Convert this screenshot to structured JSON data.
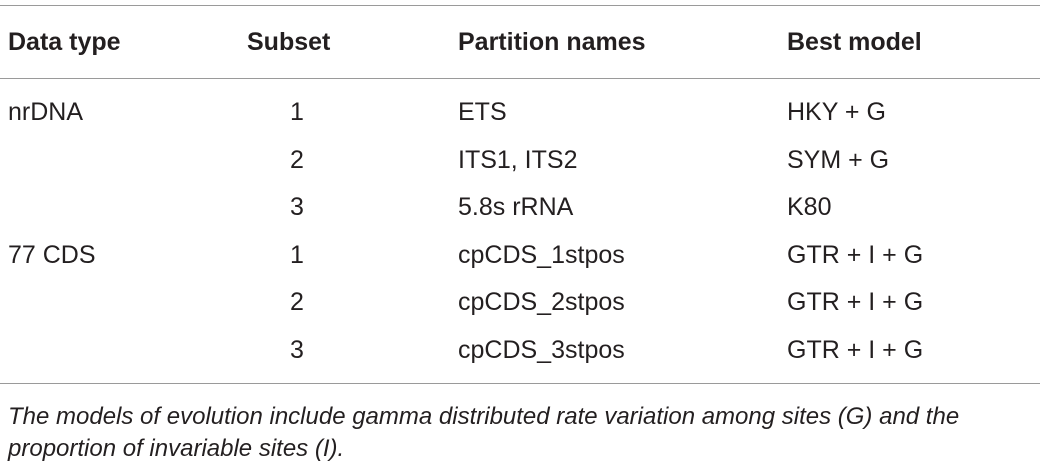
{
  "table": {
    "header": [
      "Data type",
      "Subset",
      "Partition names",
      "Best model"
    ],
    "groups": [
      {
        "data_type": "nrDNA",
        "rows": [
          [
            1,
            "ETS",
            "HKY + G"
          ],
          [
            2,
            "ITS1, ITS2",
            "SYM + G"
          ],
          [
            3,
            "5.8s rRNA",
            "K80"
          ]
        ]
      },
      {
        "data_type": "77 CDS",
        "rows": [
          [
            1,
            "cpCDS_1stpos",
            "GTR + I + G"
          ],
          [
            2,
            "cpCDS_2stpos",
            "GTR + I + G"
          ],
          [
            3,
            "cpCDS_3stpos",
            "GTR + I + G"
          ]
        ]
      }
    ]
  },
  "footnote": "The models of evolution include gamma distributed rate variation among sites (G) and the proportion of invariable sites (I)."
}
